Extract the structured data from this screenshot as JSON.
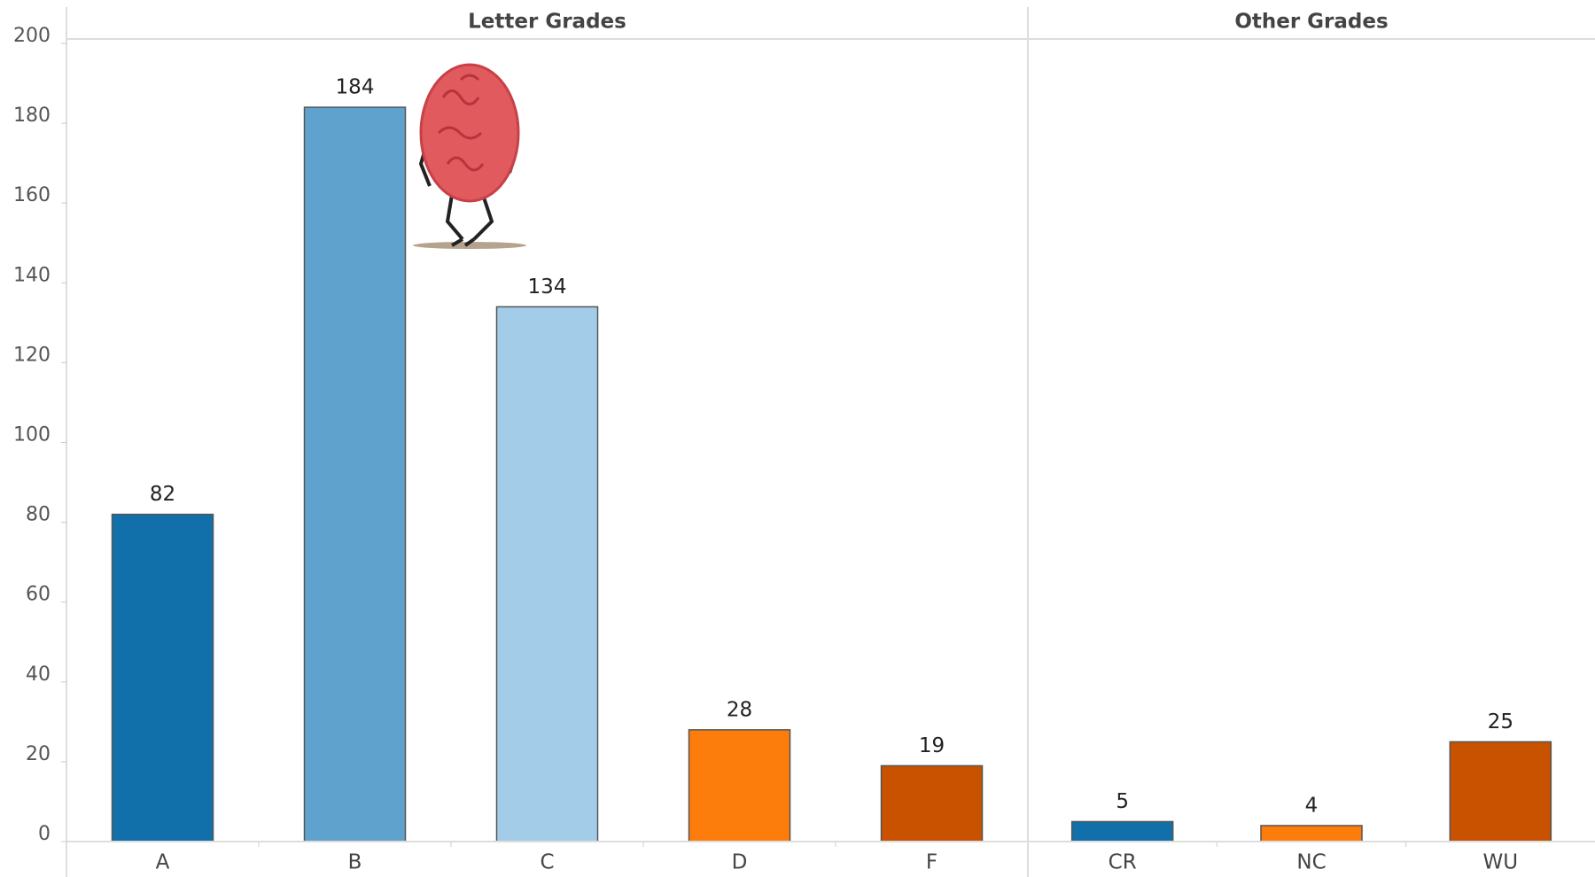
{
  "chart_data": {
    "type": "bar",
    "ylim": [
      0,
      200
    ],
    "yticks": [
      0,
      20,
      40,
      60,
      80,
      100,
      120,
      140,
      160,
      180,
      200
    ],
    "panels": [
      {
        "title": "Letter Grades",
        "categories": [
          "A",
          "B",
          "C",
          "D",
          "F"
        ],
        "values": [
          82,
          184,
          134,
          28,
          19
        ],
        "colors": [
          "#1170aa",
          "#5fa2ce",
          "#a3cce9",
          "#fc7d0b",
          "#c85200"
        ]
      },
      {
        "title": "Other Grades",
        "categories": [
          "CR",
          "NC",
          "WU"
        ],
        "values": [
          5,
          4,
          25
        ],
        "colors": [
          "#1170aa",
          "#fc7d0b",
          "#c85200"
        ]
      }
    ]
  }
}
